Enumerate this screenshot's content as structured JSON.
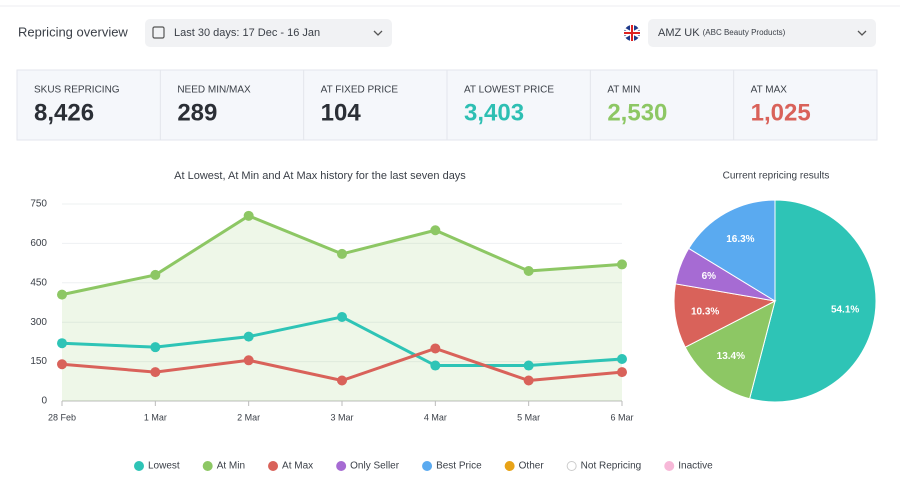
{
  "header": {
    "title": "Repricing overview",
    "date_range": "Last 30 days: 17 Dec - 16 Jan",
    "marketplace": "AMZ UK",
    "marketplace_detail": "(ABC Beauty Products)"
  },
  "kpis": [
    {
      "label": "SKUS REPRICING",
      "value": "8,426",
      "color": "#2b2f36"
    },
    {
      "label": "NEED MIN/MAX",
      "value": "289",
      "color": "#2b2f36"
    },
    {
      "label": "AT FIXED PRICE",
      "value": "104",
      "color": "#2b2f36"
    },
    {
      "label": "AT LOWEST PRICE",
      "value": "3,403",
      "color": "#2ebfb3"
    },
    {
      "label": "AT MIN",
      "value": "2,530",
      "color": "#8dc764"
    },
    {
      "label": "AT MAX",
      "value": "1,025",
      "color": "#d9625a"
    }
  ],
  "chart_data": [
    {
      "type": "line",
      "title": "At Lowest, At Min and At Max history for the last seven days",
      "categories": [
        "28 Feb",
        "1 Mar",
        "2 Mar",
        "3 Mar",
        "4 Mar",
        "5 Mar",
        "6 Mar"
      ],
      "series": [
        {
          "name": "Lowest",
          "color": "#2ec4b6",
          "values": [
            220,
            205,
            245,
            320,
            135,
            135,
            160
          ]
        },
        {
          "name": "At Min",
          "color": "#8dc764",
          "values": [
            405,
            480,
            705,
            560,
            650,
            495,
            520
          ],
          "fill_area": true
        },
        {
          "name": "At Max",
          "color": "#d9625a",
          "values": [
            140,
            110,
            155,
            78,
            200,
            78,
            110
          ]
        },
        {
          "name": "Only Seller",
          "color": "#a66bd3",
          "values": [
            null,
            null,
            null,
            null,
            null,
            null,
            null
          ]
        },
        {
          "name": "Best Price",
          "color": "#5aaaf0",
          "values": [
            null,
            null,
            null,
            null,
            null,
            null,
            null
          ]
        },
        {
          "name": "Other",
          "color": "#e8a317",
          "values": [
            null,
            null,
            null,
            null,
            null,
            null,
            null
          ]
        },
        {
          "name": "Not Repricing",
          "color": "#ffffff",
          "values": [
            null,
            null,
            null,
            null,
            null,
            null,
            null
          ]
        },
        {
          "name": "Inactive",
          "color": "#f7b8d8",
          "values": [
            null,
            null,
            null,
            null,
            null,
            null,
            null
          ]
        }
      ],
      "ylim": [
        0,
        750
      ],
      "yticks": [
        0,
        150,
        300,
        450,
        600,
        750
      ],
      "grid": true
    },
    {
      "type": "pie",
      "title": "Current repricing results",
      "values": [
        54.1,
        13.4,
        10.3,
        6,
        16.3
      ],
      "value_labels": [
        "54.1%",
        "13.4%",
        "10.3%",
        "6%",
        "16.3%"
      ],
      "colors": [
        "#2ec4b6",
        "#8dc764",
        "#d9625a",
        "#a66bd3",
        "#5aaaf0"
      ]
    }
  ]
}
